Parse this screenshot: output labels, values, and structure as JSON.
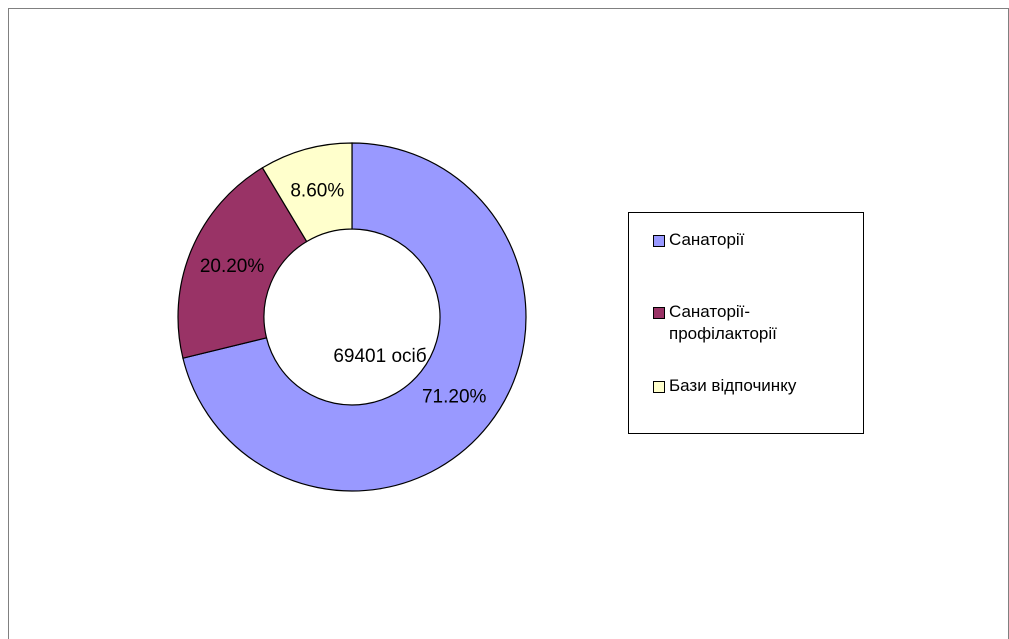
{
  "chart_data": {
    "type": "donut",
    "center_label": "69401 осіб",
    "categories": [
      "Санаторії",
      "Санаторії-профілакторії",
      "Бази відпочинку"
    ],
    "values": [
      71.2,
      20.2,
      8.6
    ],
    "value_labels": [
      "71.20%",
      "20.20%",
      "8.60%"
    ],
    "colors": [
      "#9999ff",
      "#993366",
      "#ffffcc"
    ],
    "legend": "right"
  }
}
